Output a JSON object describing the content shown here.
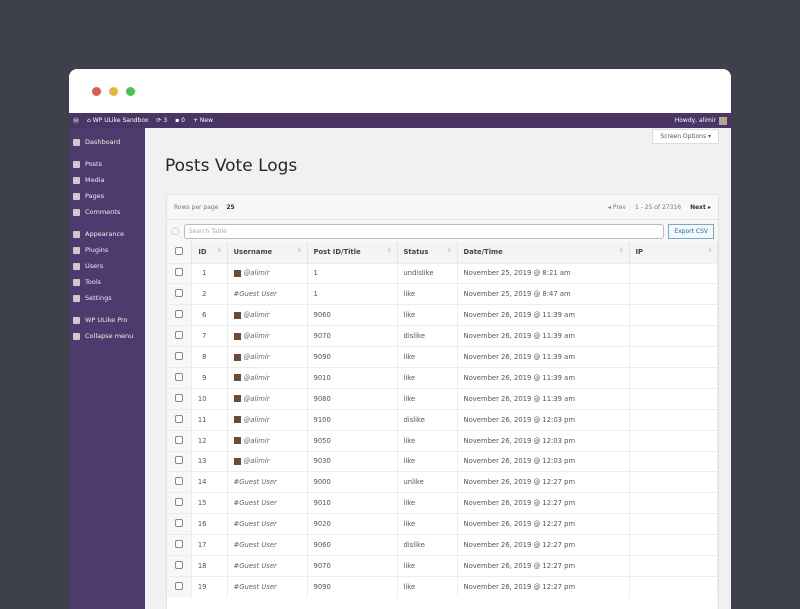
{
  "adminbar": {
    "site": "WP ULike Sandbox",
    "updates": "3",
    "comments": "0",
    "new": "New",
    "howdy": "Howdy, alimir"
  },
  "sidebar": {
    "items": [
      {
        "label": "Dashboard"
      },
      {
        "label": "Posts"
      },
      {
        "label": "Media"
      },
      {
        "label": "Pages"
      },
      {
        "label": "Comments"
      },
      {
        "label": "Appearance"
      },
      {
        "label": "Plugins"
      },
      {
        "label": "Users"
      },
      {
        "label": "Tools"
      },
      {
        "label": "Settings"
      },
      {
        "label": "WP ULike Pro"
      },
      {
        "label": "Collapse menu"
      }
    ]
  },
  "screen_options": "Screen Options ▾",
  "page_title": "Posts Vote Logs",
  "toolbar": {
    "rows_label": "Rows per page",
    "rows_value": "25",
    "prev": "◂ Prev",
    "range": "1 - 25 of 27316",
    "next": "Next ▸",
    "search_placeholder": "Search Table",
    "export": "Export CSV"
  },
  "columns": [
    "ID",
    "Username",
    "Post ID/Title",
    "Status",
    "Date/Time",
    "IP"
  ],
  "rows": [
    [
      "1",
      "@alimir",
      "1",
      "undislike",
      "November 25, 2019 @ 8:21 am",
      ""
    ],
    [
      "2",
      "#Guest User",
      "1",
      "like",
      "November 25, 2019 @ 8:47 am",
      ""
    ],
    [
      "6",
      "@alimir",
      "9060",
      "like",
      "November 26, 2019 @ 11:39 am",
      ""
    ],
    [
      "7",
      "@alimir",
      "9070",
      "dislike",
      "November 26, 2019 @ 11:39 am",
      ""
    ],
    [
      "8",
      "@alimir",
      "9090",
      "like",
      "November 26, 2019 @ 11:39 am",
      ""
    ],
    [
      "9",
      "@alimir",
      "9010",
      "like",
      "November 26, 2019 @ 11:39 am",
      ""
    ],
    [
      "10",
      "@alimir",
      "9080",
      "like",
      "November 26, 2019 @ 11:39 am",
      ""
    ],
    [
      "11",
      "@alimir",
      "9100",
      "dislike",
      "November 26, 2019 @ 12:03 pm",
      ""
    ],
    [
      "12",
      "@alimir",
      "9050",
      "like",
      "November 26, 2019 @ 12:03 pm",
      ""
    ],
    [
      "13",
      "@alimir",
      "9030",
      "like",
      "November 26, 2019 @ 12:03 pm",
      ""
    ],
    [
      "14",
      "#Guest User",
      "9000",
      "unlike",
      "November 26, 2019 @ 12:27 pm",
      ""
    ],
    [
      "15",
      "#Guest User",
      "9010",
      "like",
      "November 26, 2019 @ 12:27 pm",
      ""
    ],
    [
      "16",
      "#Guest User",
      "9020",
      "like",
      "November 26, 2019 @ 12:27 pm",
      ""
    ],
    [
      "17",
      "#Guest User",
      "9060",
      "dislike",
      "November 26, 2019 @ 12:27 pm",
      ""
    ],
    [
      "18",
      "#Guest User",
      "9070",
      "like",
      "November 26, 2019 @ 12:27 pm",
      ""
    ],
    [
      "19",
      "#Guest User",
      "9090",
      "like",
      "November 26, 2019 @ 12:27 pm",
      ""
    ]
  ]
}
